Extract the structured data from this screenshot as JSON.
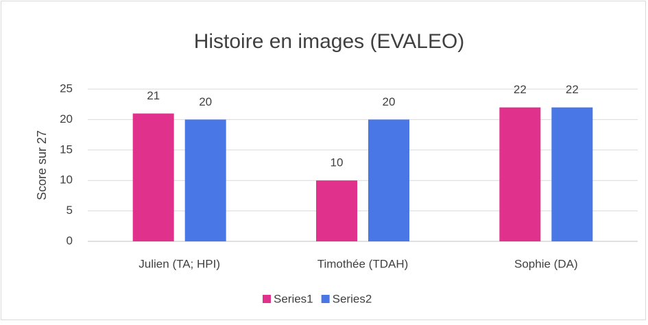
{
  "chart_data": {
    "type": "bar",
    "title": "Histoire en images (EVALEO)",
    "y_label": "Score sur 27",
    "categories": [
      "Julien (TA; HPI)",
      "Timothée (TDAH)",
      "Sophie (DA)"
    ],
    "series": [
      {
        "name": "Series1",
        "color": "#e0318c",
        "values": [
          21,
          10,
          22
        ]
      },
      {
        "name": "Series2",
        "color": "#4a77e6",
        "values": [
          20,
          20,
          22
        ]
      }
    ],
    "ylim": [
      0,
      25
    ],
    "yticks": [
      0,
      5,
      10,
      15,
      20,
      25
    ],
    "grid": true,
    "legend": "bottom"
  }
}
